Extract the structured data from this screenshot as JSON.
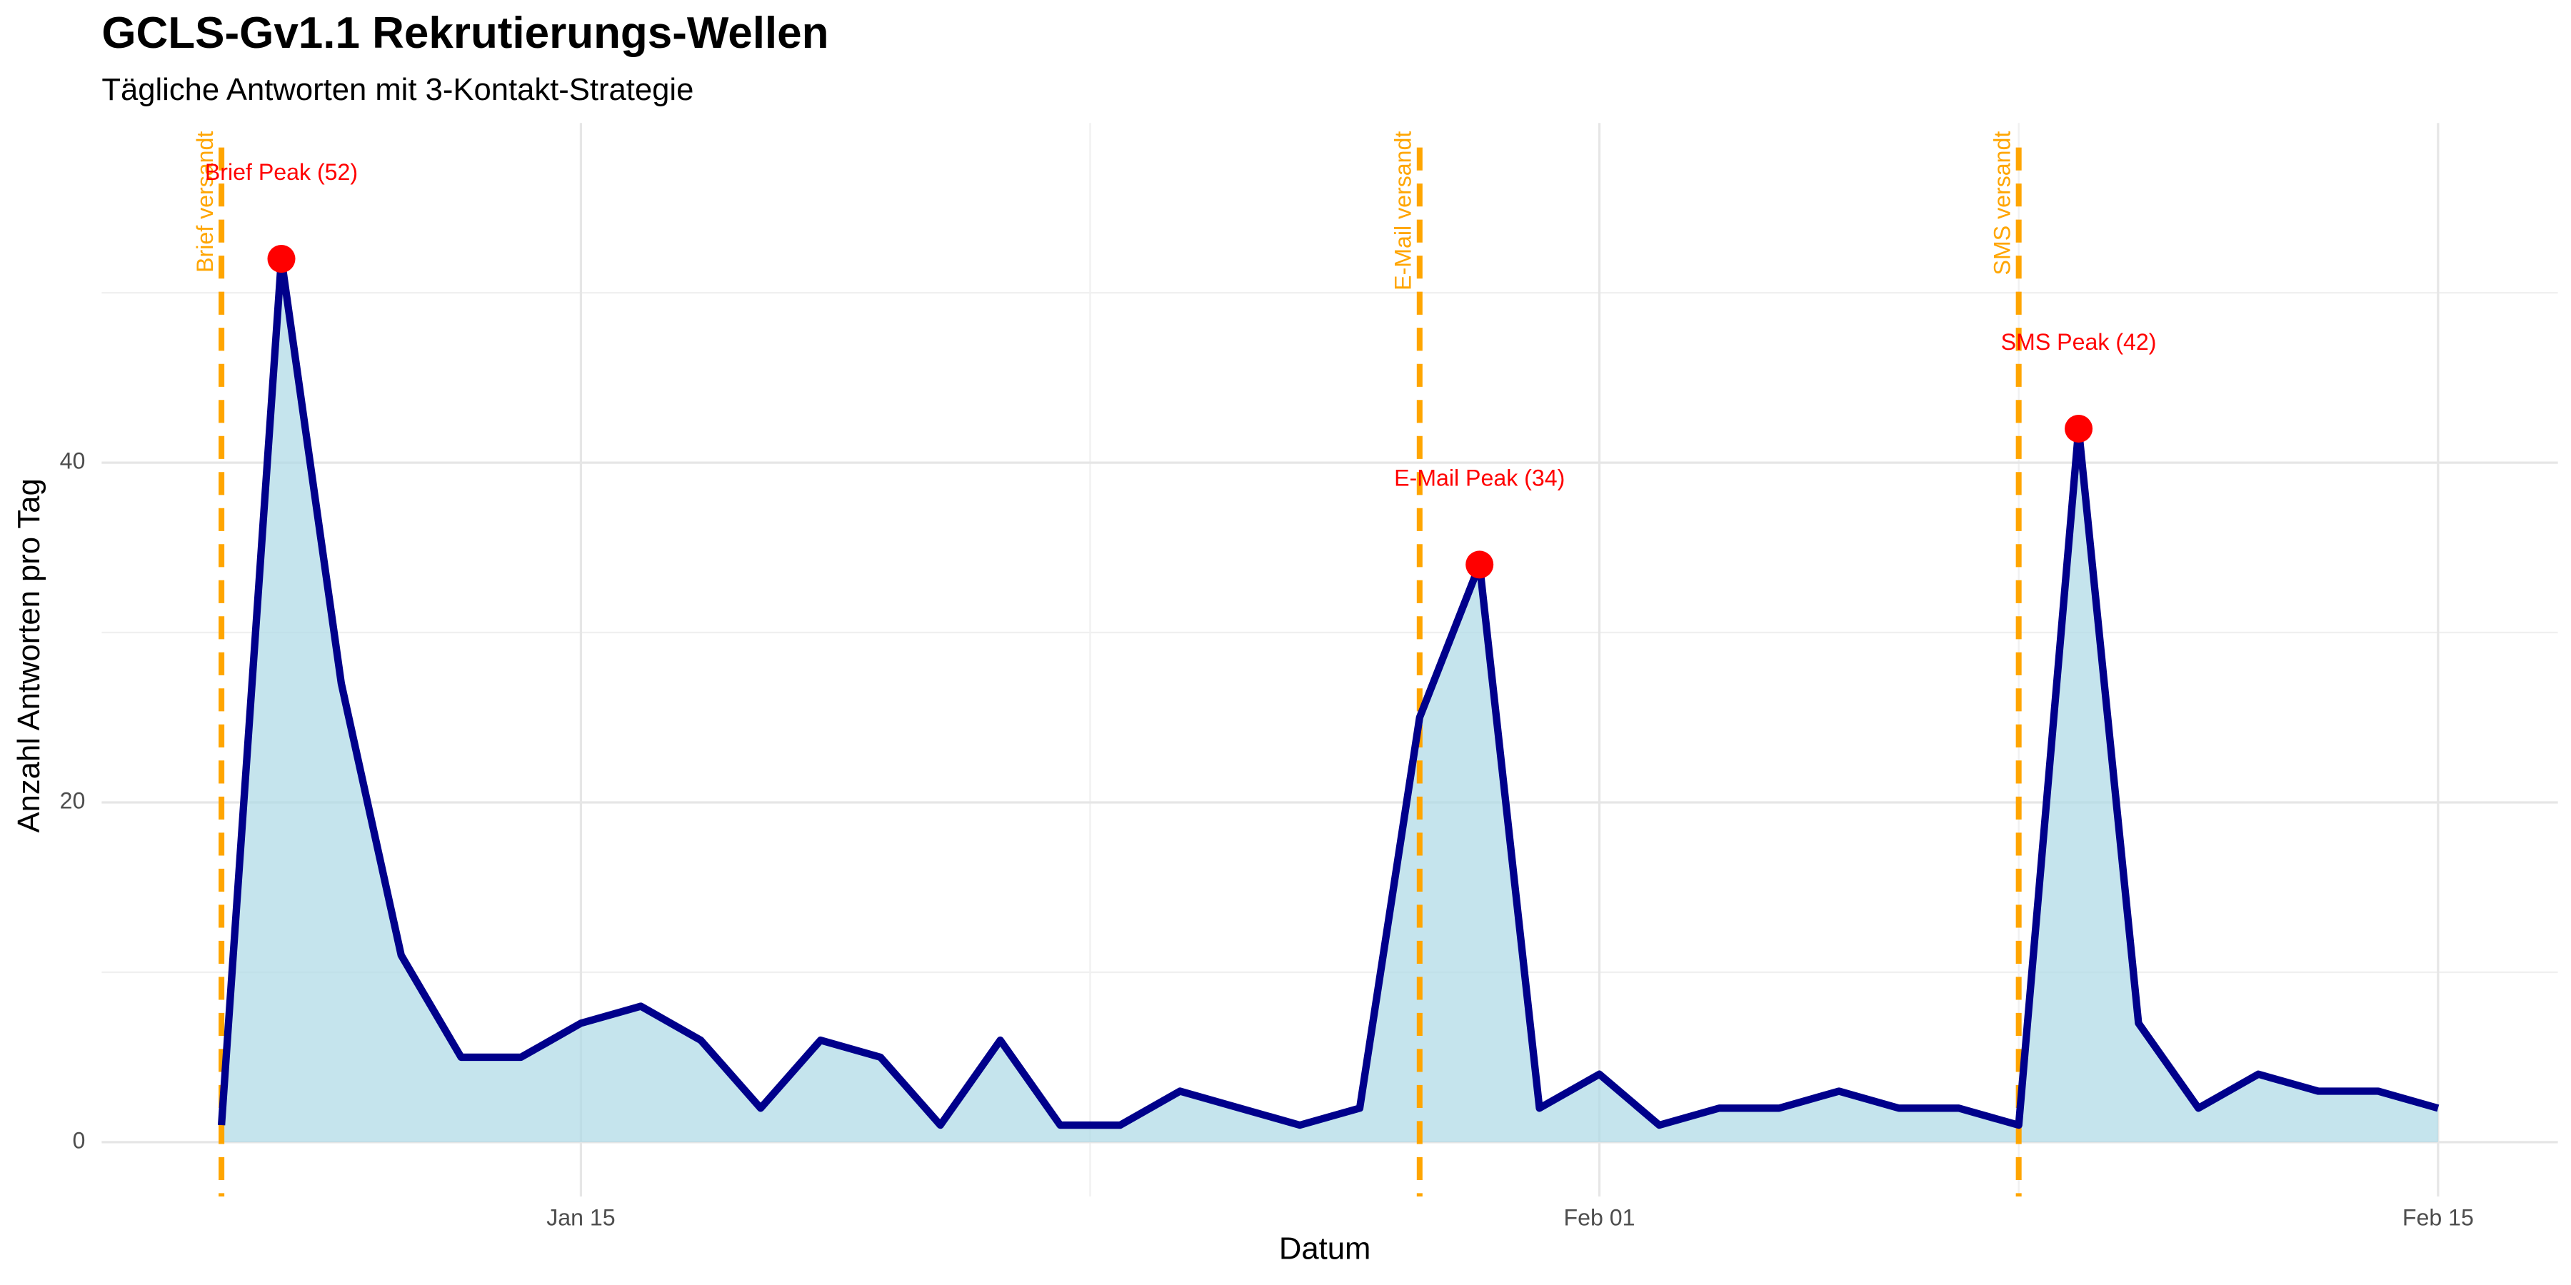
{
  "chart_data": {
    "type": "area-line",
    "title": "GCLS-Gv1.1 Rekrutierungs-Wellen",
    "subtitle": "Tägliche Antworten mit 3-Kontakt-Strategie",
    "x_label": "Datum",
    "y_label": "Anzahl Antworten pro Tag",
    "x": [
      "Jan 09",
      "Jan 10",
      "Jan 11",
      "Jan 12",
      "Jan 13",
      "Jan 14",
      "Jan 15",
      "Jan 16",
      "Jan 17",
      "Jan 18",
      "Jan 19",
      "Jan 20",
      "Jan 21",
      "Jan 22",
      "Jan 23",
      "Jan 24",
      "Jan 25",
      "Jan 26",
      "Jan 27",
      "Jan 28",
      "Jan 29",
      "Jan 30",
      "Jan 31",
      "Feb 01",
      "Feb 02",
      "Feb 03",
      "Feb 04",
      "Feb 05",
      "Feb 06",
      "Feb 07",
      "Feb 08",
      "Feb 09",
      "Feb 10",
      "Feb 11",
      "Feb 12",
      "Feb 13",
      "Feb 14",
      "Feb 15"
    ],
    "values": [
      1,
      52,
      27,
      11,
      5,
      5,
      7,
      8,
      6,
      2,
      6,
      5,
      1,
      6,
      1,
      1,
      3,
      2,
      1,
      2,
      25,
      34,
      2,
      4,
      1,
      2,
      2,
      3,
      2,
      2,
      1,
      42,
      7,
      2,
      4,
      3,
      3,
      2
    ],
    "line_color": "#00008b",
    "fill_color": "#add8e6",
    "xlim": [
      "Jan 07",
      "Feb 17"
    ],
    "xticks": [
      "Jan 15",
      "Feb 01",
      "Feb 15"
    ],
    "ylim": [
      -3.2,
      60
    ],
    "yticks": [
      0,
      20,
      40
    ],
    "grid": true,
    "events": [
      {
        "x": "Jan 09",
        "label": "Brief versandt"
      },
      {
        "x": "Jan 29",
        "label": "E-Mail versandt"
      },
      {
        "x": "Feb 08",
        "label": "SMS versandt"
      }
    ],
    "event_color": "#ffa500",
    "peaks": [
      {
        "x": "Jan 10",
        "value": 52,
        "label": "Brief Peak (52)"
      },
      {
        "x": "Jan 30",
        "value": 34,
        "label": "E-Mail Peak (34)"
      },
      {
        "x": "Feb 09",
        "value": 42,
        "label": "SMS Peak (42)"
      }
    ],
    "peak_color": "#ff0000"
  }
}
